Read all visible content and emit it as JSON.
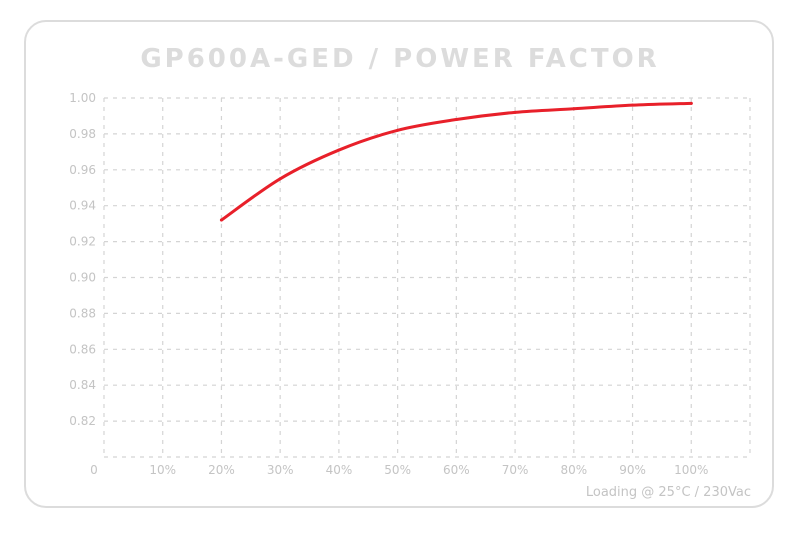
{
  "chart_data": {
    "type": "line",
    "title": "GP600A-GED / POWER FACTOR",
    "x_tick_labels": [
      "0",
      "10%",
      "20%",
      "30%",
      "40%",
      "50%",
      "60%",
      "70%",
      "80%",
      "90%",
      "100%"
    ],
    "y_tick_labels": [
      "0.82",
      "0.84",
      "0.86",
      "0.88",
      "0.90",
      "0.92",
      "0.94",
      "0.96",
      "0.98",
      "1.00"
    ],
    "xlim": [
      0,
      110
    ],
    "ylim": [
      0.8,
      1.0
    ],
    "y_ticks": [
      0.82,
      0.84,
      0.86,
      0.88,
      0.9,
      0.92,
      0.94,
      0.96,
      0.98,
      1.0
    ],
    "x_ticks": [
      0,
      10,
      20,
      30,
      40,
      50,
      60,
      70,
      80,
      90,
      100
    ],
    "grid": true,
    "annotation": "Loading @ 25°C / 230Vac",
    "series": [
      {
        "color": "#e8202a",
        "x": [
          20,
          30,
          40,
          50,
          60,
          70,
          80,
          90,
          100
        ],
        "y": [
          0.932,
          0.955,
          0.971,
          0.982,
          0.988,
          0.992,
          0.994,
          0.996,
          0.997
        ]
      }
    ]
  }
}
